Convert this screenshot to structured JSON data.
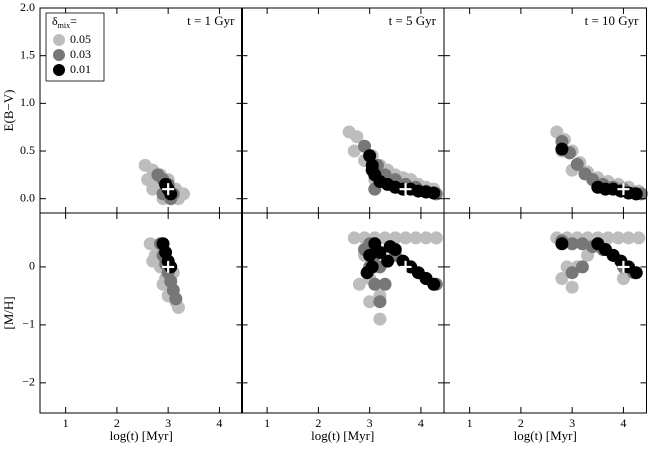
{
  "chart_data": {
    "type": "scatter",
    "xlabel": "log(t) [Myr]",
    "xlim": [
      0.5,
      4.45
    ],
    "xticks": [
      1,
      2,
      3,
      4
    ],
    "legend": {
      "symbol": "δ",
      "subscript": "mix",
      "suffix": "="
    },
    "series": [
      {
        "name": "0.05",
        "color": "#bdbdbd"
      },
      {
        "name": "0.03",
        "color": "#777777"
      },
      {
        "name": "0.01",
        "color": "#000000"
      }
    ],
    "columns": [
      {
        "title": "t = 1 Gyr"
      },
      {
        "title": "t = 5 Gyr"
      },
      {
        "title": "t = 10 Gyr"
      }
    ],
    "rows": [
      {
        "ylabel": "E(B−V)",
        "ylim": [
          -0.15,
          2.0
        ],
        "yticks": [
          {
            "value": 0,
            "label": "0.0"
          },
          0.5,
          {
            "value": 1,
            "label": "1.0"
          },
          1.5,
          {
            "value": 2,
            "label": "2.0"
          }
        ],
        "panels": [
          {
            "marker": {
              "x": 3,
              "y": 0.1
            },
            "points": [
              {
                "x": [
                  2.55,
                  2.7,
                  2.85,
                  3.0,
                  3.15,
                  3.3,
                  2.6,
                  2.8,
                  3.0,
                  3.2,
                  2.7,
                  2.9
                ],
                "y": [
                  0.35,
                  0.3,
                  0.25,
                  0.2,
                  0.1,
                  0.05,
                  0.2,
                  0.15,
                  0.05,
                  0.0,
                  0.1,
                  0.0
                ]
              },
              {
                "x": [
                  2.8,
                  2.9,
                  3.0,
                  3.1,
                  2.9,
                  3.05
                ],
                "y": [
                  0.25,
                  0.2,
                  0.15,
                  0.05,
                  0.05,
                  0.0
                ]
              },
              {
                "x": [
                  2.95,
                  3.0,
                  3.05
                ],
                "y": [
                  0.15,
                  0.1,
                  0.05
                ]
              }
            ]
          },
          {
            "marker": {
              "x": 3.7,
              "y": 0.1
            },
            "points": [
              {
                "x": [
                  2.6,
                  2.75,
                  2.9,
                  3.05,
                  3.2,
                  3.35,
                  3.5,
                  3.65,
                  3.8,
                  3.95,
                  4.1,
                  4.25,
                  2.7,
                  2.9,
                  3.1
                ],
                "y": [
                  0.7,
                  0.65,
                  0.55,
                  0.45,
                  0.35,
                  0.3,
                  0.25,
                  0.22,
                  0.2,
                  0.15,
                  0.12,
                  0.1,
                  0.5,
                  0.4,
                  0.2
                ]
              },
              {
                "x": [
                  2.9,
                  3.0,
                  3.15,
                  3.3,
                  3.5,
                  3.7,
                  3.9,
                  4.1,
                  4.3,
                  3.1
                ],
                "y": [
                  0.55,
                  0.45,
                  0.35,
                  0.25,
                  0.2,
                  0.15,
                  0.12,
                  0.08,
                  0.05,
                  0.1
                ]
              },
              {
                "x": [
                  3.0,
                  3.05,
                  3.1,
                  3.2,
                  3.35,
                  3.5,
                  3.65,
                  3.8,
                  3.95,
                  4.1,
                  4.25,
                  3.05
                ],
                "y": [
                  0.45,
                  0.35,
                  0.25,
                  0.18,
                  0.15,
                  0.12,
                  0.1,
                  0.1,
                  0.08,
                  0.07,
                  0.06,
                  0.3
                ]
              }
            ]
          },
          {
            "marker": {
              "x": 4,
              "y": 0.1
            },
            "points": [
              {
                "x": [
                  2.7,
                  2.85,
                  3.0,
                  3.15,
                  3.3,
                  3.5,
                  3.7,
                  3.9,
                  4.1,
                  4.3,
                  2.8,
                  3.0
                ],
                "y": [
                  0.7,
                  0.62,
                  0.5,
                  0.38,
                  0.28,
                  0.22,
                  0.18,
                  0.15,
                  0.12,
                  0.08,
                  0.5,
                  0.3
                ]
              },
              {
                "x": [
                  2.8,
                  2.95,
                  3.1,
                  3.25,
                  3.4,
                  3.6,
                  3.8,
                  4.0,
                  4.2,
                  4.35
                ],
                "y": [
                  0.6,
                  0.48,
                  0.36,
                  0.26,
                  0.2,
                  0.15,
                  0.12,
                  0.1,
                  0.06,
                  0.05
                ]
              },
              {
                "x": [
                  2.8,
                  3.5,
                  3.65,
                  3.8,
                  3.95,
                  4.1,
                  4.25
                ],
                "y": [
                  0.52,
                  0.12,
                  0.1,
                  0.1,
                  0.08,
                  0.06,
                  0.05
                ]
              }
            ]
          }
        ]
      },
      {
        "ylabel": "[M/H]",
        "ylim": [
          -2.52,
          0.93
        ],
        "yticks": [
          {
            "value": -2,
            "label": "−2"
          },
          {
            "value": -1,
            "label": "−1"
          },
          0
        ],
        "panels": [
          {
            "marker": {
              "x": 3,
              "y": 0
            },
            "points": [
              {
                "x": [
                  2.65,
                  2.75,
                  2.85,
                  2.95,
                  3.05,
                  3.15,
                  3.2,
                  2.7,
                  2.9,
                  3.1,
                  2.8,
                  3.0
                ],
                "y": [
                  0.4,
                  0.2,
                  0.0,
                  -0.2,
                  -0.4,
                  -0.6,
                  -0.7,
                  0.1,
                  -0.3,
                  -0.1,
                  0.3,
                  -0.5
                ]
              },
              {
                "x": [
                  2.85,
                  2.9,
                  2.95,
                  3.0,
                  3.05,
                  3.1,
                  3.15
                ],
                "y": [
                  0.4,
                  0.2,
                  0.05,
                  -0.1,
                  -0.25,
                  -0.4,
                  -0.55
                ]
              },
              {
                "x": [
                  2.9,
                  2.95,
                  3.0,
                  3.05
                ],
                "y": [
                  0.4,
                  0.25,
                  0.1,
                  0.0
                ]
              }
            ]
          },
          {
            "marker": {
              "x": 3.7,
              "y": 0
            },
            "points": [
              {
                "x": [
                  2.7,
                  2.9,
                  3.1,
                  3.3,
                  3.5,
                  3.7,
                  3.9,
                  4.1,
                  4.3,
                  2.8,
                  3.0,
                  3.2,
                  3.0,
                  3.2,
                  2.9,
                  3.1,
                  3.5
                ],
                "y": [
                  0.5,
                  0.5,
                  0.5,
                  0.5,
                  0.5,
                  0.5,
                  0.5,
                  0.5,
                  0.5,
                  -0.3,
                  -0.6,
                  -0.9,
                  -0.2,
                  -0.5,
                  0.2,
                  0.0,
                  0.2
                ]
              },
              {
                "x": [
                  2.9,
                  3.0,
                  3.1,
                  3.2,
                  3.3,
                  3.0,
                  3.1,
                  3.5,
                  3.8,
                  4.1,
                  4.3,
                  3.2
                ],
                "y": [
                  0.3,
                  0.0,
                  -0.3,
                  -0.6,
                  -0.3,
                  0.4,
                  0.2,
                  0.2,
                  0.0,
                  -0.2,
                  -0.3,
                  0.0
                ]
              },
              {
                "x": [
                  2.95,
                  3.0,
                  3.1,
                  3.2,
                  3.35,
                  3.5,
                  3.65,
                  3.8,
                  3.95,
                  4.1,
                  4.25,
                  3.05,
                  3.4
                ],
                "y": [
                  -0.1,
                  0.2,
                  0.4,
                  0.25,
                  0.1,
                  0.3,
                  0.1,
                  0.0,
                  -0.1,
                  -0.2,
                  -0.3,
                  0.0,
                  0.35
                ]
              }
            ]
          },
          {
            "marker": {
              "x": 4,
              "y": 0
            },
            "points": [
              {
                "x": [
                  2.7,
                  2.9,
                  3.1,
                  3.3,
                  3.5,
                  3.7,
                  3.9,
                  4.1,
                  4.3,
                  2.8,
                  3.0,
                  2.9,
                  3.1,
                  3.3,
                  4.0
                ],
                "y": [
                  0.5,
                  0.5,
                  0.5,
                  0.5,
                  0.5,
                  0.5,
                  0.5,
                  0.5,
                  0.5,
                  -0.2,
                  -0.35,
                  0.0,
                  0.0,
                  0.2,
                  -0.2
                ]
              },
              {
                "x": [
                  2.8,
                  3.0,
                  3.2,
                  3.4,
                  3.6,
                  3.8,
                  4.0,
                  4.2,
                  3.0,
                  3.2
                ],
                "y": [
                  0.45,
                  0.4,
                  0.4,
                  0.35,
                  0.3,
                  0.2,
                  0.0,
                  -0.1,
                  -0.1,
                  0.0
                ]
              },
              {
                "x": [
                  2.8,
                  3.5,
                  3.65,
                  3.8,
                  3.95,
                  4.1,
                  4.25
                ],
                "y": [
                  0.4,
                  0.4,
                  0.3,
                  0.2,
                  0.1,
                  0.0,
                  -0.1
                ]
              }
            ]
          }
        ]
      }
    ]
  }
}
